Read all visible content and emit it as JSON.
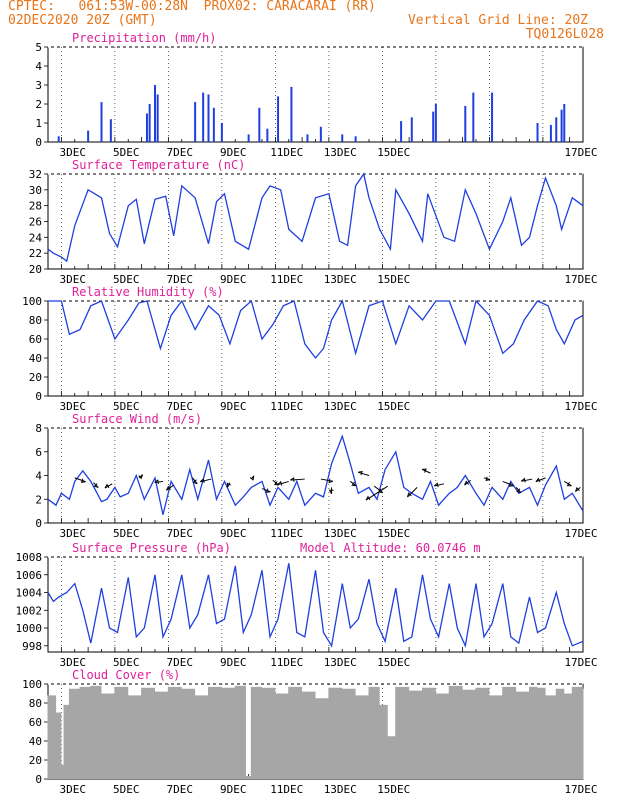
{
  "header": {
    "line1_left": "CPTEC:   061:53W-00:28N  PROX02: CARACARAI (RR)",
    "line2_left": "02DEC2020 20Z (GMT)",
    "line2_right": "Vertical Grid Line: 20Z",
    "line3_right": "TQ0126L028"
  },
  "colors": {
    "header": "#e8751a",
    "title": "#e0209a",
    "series": "#1f3fe0",
    "cloud": "#a6a6a6",
    "frame": "#000000"
  },
  "x_tick_labels": [
    "3DEC",
    "5DEC",
    "7DEC",
    "9DEC",
    "11DEC",
    "13DEC",
    "15DEC",
    "17DEC"
  ],
  "chart_data": [
    {
      "id": "precip",
      "type": "bar",
      "title": "Precipitation (mm/h)",
      "x_unit": "days since 02DEC2020 20Z",
      "ylim": [
        0,
        5
      ],
      "yticks": [
        "0",
        "1",
        "2",
        "3",
        "4",
        "5"
      ],
      "values": [
        [
          0.4,
          0.3
        ],
        [
          1.5,
          0.6
        ],
        [
          2.0,
          2.1
        ],
        [
          2.35,
          1.2
        ],
        [
          3.7,
          1.5
        ],
        [
          3.8,
          2.0
        ],
        [
          4.0,
          3.0
        ],
        [
          4.1,
          2.5
        ],
        [
          5.5,
          2.1
        ],
        [
          5.8,
          2.6
        ],
        [
          6.0,
          2.5
        ],
        [
          6.2,
          1.8
        ],
        [
          6.5,
          1.0
        ],
        [
          7.5,
          0.4
        ],
        [
          7.9,
          1.8
        ],
        [
          8.2,
          0.7
        ],
        [
          8.6,
          2.4
        ],
        [
          9.1,
          2.9
        ],
        [
          9.7,
          0.4
        ],
        [
          10.2,
          0.8
        ],
        [
          11.0,
          0.4
        ],
        [
          11.5,
          0.3
        ],
        [
          13.2,
          1.1
        ],
        [
          13.6,
          1.3
        ],
        [
          14.4,
          1.6
        ],
        [
          14.5,
          2.0
        ],
        [
          15.6,
          1.9
        ],
        [
          15.9,
          2.6
        ],
        [
          16.6,
          2.6
        ],
        [
          18.3,
          1.0
        ],
        [
          18.8,
          0.9
        ],
        [
          19.0,
          1.3
        ],
        [
          19.2,
          1.7
        ],
        [
          19.3,
          2.0
        ]
      ]
    },
    {
      "id": "temp",
      "type": "line",
      "title": "Surface Temperature (nC)",
      "ylim": [
        20,
        32
      ],
      "yticks": [
        "20",
        "22",
        "24",
        "26",
        "28",
        "30",
        "32"
      ],
      "x": [
        0,
        0.2,
        0.5,
        0.7,
        1.0,
        1.5,
        2.0,
        2.3,
        2.6,
        3.0,
        3.3,
        3.6,
        4.0,
        4.4,
        4.7,
        5.0,
        5.5,
        6.0,
        6.3,
        6.6,
        7.0,
        7.5,
        8.0,
        8.3,
        8.7,
        9.0,
        9.5,
        10.0,
        10.5,
        10.9,
        11.2,
        11.5,
        11.8,
        12.0,
        12.4,
        12.8,
        13.0,
        13.5,
        14.0,
        14.2,
        14.8,
        15.2,
        15.6,
        16.0,
        16.5,
        17.0,
        17.3,
        17.7,
        18.0,
        18.3,
        18.6,
        19.0,
        19.2,
        19.6,
        20.0
      ],
      "values": [
        22.5,
        22,
        21.5,
        21,
        25.5,
        30,
        29,
        24.5,
        22.8,
        28,
        28.8,
        23.2,
        28.8,
        29.2,
        24.2,
        30.5,
        29,
        23.2,
        28.5,
        29.5,
        23.5,
        22.5,
        29,
        30.5,
        30,
        25,
        23.5,
        29,
        29.5,
        23.5,
        23,
        30.5,
        32,
        29,
        25,
        22.5,
        30,
        27,
        23.5,
        29.5,
        24,
        23.5,
        30,
        27,
        22.5,
        26,
        29,
        23,
        24,
        28,
        31.5,
        28,
        25,
        29,
        28
      ]
    },
    {
      "id": "rh",
      "type": "line",
      "title": "Relative Humidity (%)",
      "ylim": [
        0,
        100
      ],
      "yticks": [
        "0",
        "20",
        "40",
        "60",
        "80",
        "100"
      ],
      "x": [
        0,
        0.5,
        0.8,
        1.2,
        1.6,
        2.0,
        2.5,
        3.0,
        3.4,
        3.7,
        4.2,
        4.6,
        5.0,
        5.5,
        6.0,
        6.4,
        6.8,
        7.2,
        7.6,
        8.0,
        8.4,
        8.8,
        9.2,
        9.6,
        10.0,
        10.3,
        10.6,
        11.0,
        11.5,
        12.0,
        12.5,
        13.0,
        13.5,
        14.0,
        14.5,
        15.0,
        15.6,
        16.0,
        16.5,
        17.0,
        17.4,
        17.8,
        18.3,
        18.7,
        19.0,
        19.3,
        19.7,
        20.0
      ],
      "values": [
        100,
        100,
        65,
        70,
        95,
        100,
        60,
        80,
        98,
        100,
        50,
        85,
        100,
        70,
        95,
        85,
        55,
        90,
        100,
        60,
        75,
        95,
        100,
        55,
        40,
        50,
        80,
        100,
        45,
        95,
        100,
        55,
        95,
        80,
        100,
        100,
        55,
        100,
        85,
        45,
        55,
        80,
        100,
        95,
        70,
        55,
        80,
        85
      ]
    },
    {
      "id": "wind",
      "type": "line",
      "title": "Surface Wind (m/s)",
      "ylim": [
        0,
        8
      ],
      "yticks": [
        "0",
        "2",
        "4",
        "6",
        "8"
      ],
      "x": [
        0,
        0.3,
        0.5,
        0.8,
        1.0,
        1.3,
        1.6,
        2.0,
        2.2,
        2.5,
        2.7,
        3.0,
        3.3,
        3.6,
        4.0,
        4.3,
        4.6,
        5.0,
        5.3,
        5.6,
        6.0,
        6.3,
        6.6,
        7.0,
        7.3,
        7.6,
        8.0,
        8.3,
        8.6,
        9.0,
        9.3,
        9.6,
        10.0,
        10.3,
        10.6,
        11.0,
        11.3,
        11.6,
        12.0,
        12.3,
        12.6,
        13.0,
        13.3,
        13.6,
        14.0,
        14.3,
        14.6,
        15.0,
        15.3,
        15.6,
        16.0,
        16.3,
        16.6,
        17.0,
        17.3,
        17.6,
        18.0,
        18.3,
        18.6,
        19.0,
        19.3,
        19.6,
        20.0
      ],
      "values": [
        2,
        1.5,
        2.5,
        2.0,
        3.5,
        4.4,
        3.5,
        1.8,
        2.0,
        3.0,
        2.2,
        2.5,
        4.0,
        2.0,
        3.8,
        0.7,
        3.5,
        2.0,
        4.5,
        2.0,
        5.3,
        2.0,
        3.5,
        1.5,
        2.2,
        3.0,
        3.5,
        1.5,
        3.0,
        2.0,
        3.5,
        1.5,
        2.5,
        2.2,
        5.0,
        7.3,
        5.0,
        2.5,
        3.0,
        2.0,
        4.5,
        6.0,
        3.0,
        2.5,
        2.0,
        3.5,
        1.5,
        2.5,
        3.0,
        4.0,
        2.5,
        1.5,
        3.0,
        2.0,
        3.5,
        2.5,
        3.0,
        1.5,
        3.2,
        4.8,
        2.0,
        2.5,
        1.0
      ],
      "arrows": [
        [
          1.0,
          3.8,
          0.45,
          -0.35
        ],
        [
          1.7,
          3.4,
          0.2,
          -0.45
        ],
        [
          2.4,
          3.3,
          -0.3,
          -0.4
        ],
        [
          3.4,
          3.8,
          0.15,
          0.3
        ],
        [
          4.3,
          3.5,
          -0.35,
          -0.1
        ],
        [
          4.7,
          3.2,
          -0.3,
          -0.5
        ],
        [
          5.4,
          3.8,
          0.2,
          -0.55
        ],
        [
          6.1,
          3.7,
          -0.45,
          -0.25
        ],
        [
          6.8,
          3.4,
          -0.1,
          -0.45
        ],
        [
          7.6,
          3.7,
          0.1,
          0.3
        ],
        [
          8.0,
          2.9,
          0.35,
          -0.3
        ],
        [
          8.4,
          3.6,
          0.25,
          -0.45
        ],
        [
          9.0,
          3.5,
          -0.45,
          -0.3
        ],
        [
          9.6,
          3.7,
          -0.6,
          -0.1
        ],
        [
          10.2,
          3.7,
          0.5,
          -0.2
        ],
        [
          10.6,
          3.0,
          0.0,
          -0.6
        ],
        [
          11.3,
          3.5,
          0.25,
          -0.4
        ],
        [
          12.0,
          4.0,
          -0.45,
          0.3
        ],
        [
          12.7,
          3.1,
          -0.9,
          -1.3
        ],
        [
          12.2,
          3.1,
          0.35,
          -0.6
        ],
        [
          13.8,
          3.0,
          -0.4,
          -0.9
        ],
        [
          14.3,
          4.2,
          -0.35,
          0.35
        ],
        [
          14.8,
          3.3,
          -0.4,
          -0.2
        ],
        [
          15.8,
          3.6,
          -0.25,
          -0.45
        ],
        [
          16.3,
          3.8,
          0.25,
          -0.15
        ],
        [
          17.0,
          3.5,
          0.45,
          -0.4
        ],
        [
          17.5,
          3.0,
          0.2,
          -0.5
        ],
        [
          18.1,
          3.7,
          -0.45,
          -0.2
        ],
        [
          18.6,
          3.8,
          -0.4,
          -0.35
        ],
        [
          19.3,
          3.5,
          0.3,
          -0.4
        ],
        [
          19.9,
          3.0,
          -0.2,
          -0.4
        ]
      ]
    },
    {
      "id": "pres",
      "type": "line",
      "title": "Surface Pressure (hPa)",
      "annotation": "Model Altitude: 60.0746 m",
      "ylim": [
        997.3,
        1008
      ],
      "yticks": [
        "998",
        "1000",
        "1002",
        "1004",
        "1006",
        "1008"
      ],
      "x": [
        0,
        0.2,
        0.4,
        0.7,
        1.0,
        1.3,
        1.6,
        2.0,
        2.3,
        2.6,
        3.0,
        3.3,
        3.6,
        4.0,
        4.3,
        4.6,
        5.0,
        5.3,
        5.6,
        6.0,
        6.3,
        6.6,
        7.0,
        7.3,
        7.6,
        8.0,
        8.3,
        8.6,
        9.0,
        9.3,
        9.6,
        10.0,
        10.3,
        10.6,
        11.0,
        11.3,
        11.6,
        12.0,
        12.3,
        12.6,
        13.0,
        13.3,
        13.6,
        14.0,
        14.3,
        14.6,
        15.0,
        15.3,
        15.6,
        16.0,
        16.3,
        16.6,
        17.0,
        17.3,
        17.6,
        18.0,
        18.3,
        18.6,
        19.0,
        19.3,
        19.6,
        20.0
      ],
      "values": [
        1004.0,
        1003.0,
        1003.5,
        1004.0,
        1005.0,
        1002.0,
        998.3,
        1004.5,
        1000.0,
        999.5,
        1005.7,
        999.0,
        1000.0,
        1006.0,
        999.0,
        1001.0,
        1006.0,
        1000.0,
        1001.5,
        1006.0,
        1000.5,
        1001.0,
        1007.0,
        999.5,
        1001.5,
        1006.5,
        999.0,
        1001.0,
        1007.3,
        999.5,
        999.0,
        1006.5,
        999.5,
        998.0,
        1005.0,
        1000.0,
        1001.0,
        1005.5,
        1000.5,
        998.5,
        1004.5,
        998.5,
        999.0,
        1006.0,
        1001.0,
        999.0,
        1005.0,
        1000.0,
        998.0,
        1005.0,
        999.0,
        1000.5,
        1005.0,
        999.0,
        998.3,
        1003.5,
        999.5,
        1000.0,
        1004.0,
        1000.5,
        998.0,
        998.5
      ]
    },
    {
      "id": "cloud",
      "type": "bar",
      "title": "Cloud Cover (%)",
      "ylim": [
        0,
        100
      ],
      "yticks": [
        "0",
        "20",
        "40",
        "60",
        "80",
        "100"
      ],
      "x": [
        0,
        0.3,
        0.5,
        0.6,
        0.8,
        1.2,
        1.6,
        2.0,
        2.5,
        3.0,
        3.5,
        4.0,
        4.5,
        5.0,
        5.5,
        6.0,
        6.5,
        7.0,
        7.4,
        7.6,
        8.0,
        8.5,
        9.0,
        9.5,
        10.0,
        10.5,
        11.0,
        11.5,
        12.0,
        12.4,
        12.7,
        13.0,
        13.5,
        14.0,
        14.5,
        15.0,
        15.5,
        16.0,
        16.5,
        17.0,
        17.5,
        18.0,
        18.3,
        18.6,
        19.0,
        19.3,
        19.6,
        20.0
      ],
      "values": [
        88,
        70,
        15,
        78,
        95,
        97,
        98,
        90,
        97,
        88,
        96,
        92,
        97,
        95,
        88,
        97,
        96,
        98,
        3,
        97,
        96,
        90,
        97,
        92,
        85,
        96,
        95,
        88,
        97,
        78,
        45,
        97,
        93,
        96,
        90,
        98,
        94,
        96,
        88,
        97,
        92,
        97,
        96,
        88,
        95,
        90,
        97,
        95
      ]
    }
  ]
}
